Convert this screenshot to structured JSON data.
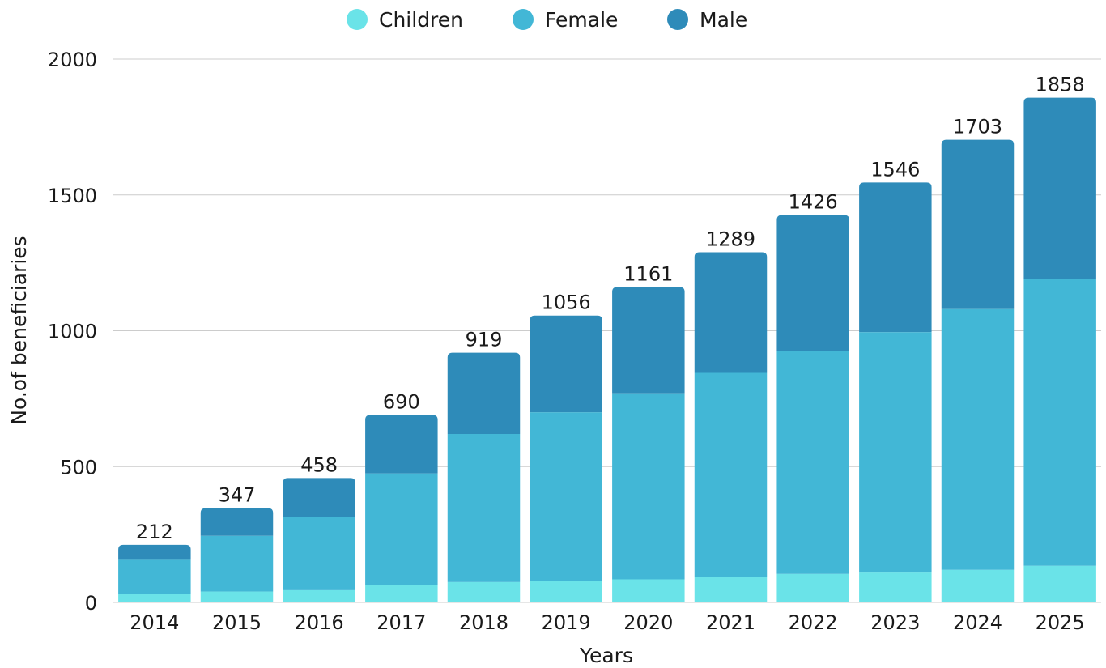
{
  "chart_data": {
    "type": "bar",
    "stacked": true,
    "title": "",
    "xlabel": "Years",
    "ylabel": "No.of beneficiaries",
    "ylim": [
      0,
      2000
    ],
    "yticks": [
      "0",
      "500",
      "1000",
      "1500",
      "2000"
    ],
    "grid": true,
    "legend_position": "top-center",
    "categories": [
      "2014",
      "2015",
      "2016",
      "2017",
      "2018",
      "2019",
      "2020",
      "2021",
      "2022",
      "2023",
      "2024",
      "2025"
    ],
    "series": [
      {
        "name": "Children",
        "color": "#6ae3e8",
        "values": [
          30,
          40,
          45,
          65,
          75,
          80,
          85,
          95,
          105,
          110,
          120,
          135
        ]
      },
      {
        "name": "Female",
        "color": "#42b7d6",
        "values": [
          130,
          205,
          270,
          410,
          545,
          620,
          685,
          750,
          820,
          885,
          960,
          1055
        ]
      },
      {
        "name": "Male",
        "color": "#2e8bb9",
        "values": [
          52,
          102,
          143,
          215,
          299,
          356,
          391,
          444,
          501,
          551,
          623,
          668
        ]
      }
    ],
    "totals": [
      "212",
      "347",
      "458",
      "690",
      "919",
      "1056",
      "1161",
      "1289",
      "1426",
      "1546",
      "1703",
      "1858"
    ]
  }
}
